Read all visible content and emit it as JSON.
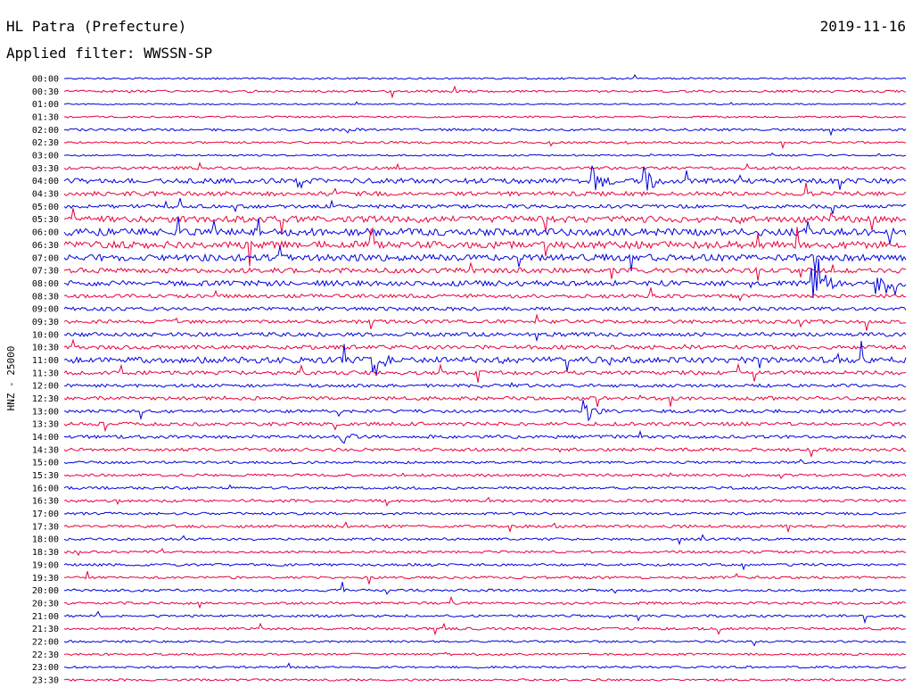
{
  "header": {
    "station": "HL Patra (Prefecture)",
    "date": "2019-11-16",
    "filter": "Applied filter: WWSSN-SP"
  },
  "chart_data": {
    "type": "line",
    "title": "HL Patra (Prefecture)",
    "subtitle": "Applied filter: WWSSN-SP",
    "date": "2019-11-16",
    "ylabel": "HNZ - 25000",
    "xlabel": "",
    "grid": false,
    "legend": "none",
    "series_colors": [
      "#0000e0",
      "#e8003c"
    ],
    "row_labels": [
      "00:00",
      "00:30",
      "01:00",
      "01:30",
      "02:00",
      "02:30",
      "03:00",
      "03:30",
      "04:00",
      "04:30",
      "05:00",
      "05:30",
      "06:00",
      "06:30",
      "07:00",
      "07:30",
      "08:00",
      "08:30",
      "09:00",
      "09:30",
      "10:00",
      "10:30",
      "11:00",
      "11:30",
      "12:00",
      "12:30",
      "13:00",
      "13:30",
      "14:00",
      "14:30",
      "15:00",
      "15:30",
      "16:00",
      "16:30",
      "17:00",
      "17:30",
      "18:00",
      "18:30",
      "19:00",
      "19:30",
      "20:00",
      "20:30",
      "21:00",
      "21:30",
      "22:00",
      "22:30",
      "23:00",
      "23:30"
    ],
    "row_activity": [
      0.25,
      0.3,
      0.2,
      0.25,
      0.35,
      0.3,
      0.25,
      0.4,
      0.7,
      0.6,
      0.5,
      0.9,
      1.0,
      1.0,
      0.9,
      0.7,
      0.75,
      0.5,
      0.5,
      0.5,
      0.55,
      0.55,
      0.85,
      0.55,
      0.45,
      0.5,
      0.45,
      0.5,
      0.45,
      0.45,
      0.35,
      0.35,
      0.35,
      0.4,
      0.35,
      0.4,
      0.35,
      0.35,
      0.35,
      0.35,
      0.35,
      0.35,
      0.35,
      0.35,
      0.3,
      0.3,
      0.3,
      0.3
    ],
    "events": [
      {
        "row": 8,
        "time": 0.63,
        "amp": 0.6
      },
      {
        "row": 8,
        "time": 0.69,
        "amp": 0.6
      },
      {
        "row": 16,
        "time": 0.89,
        "amp": 2.2
      },
      {
        "row": 16,
        "time": 0.97,
        "amp": 0.8
      },
      {
        "row": 22,
        "time": 0.37,
        "amp": 0.7
      },
      {
        "row": 26,
        "time": 0.62,
        "amp": 0.5
      },
      {
        "row": 28,
        "time": 0.33,
        "amp": 0.4
      }
    ]
  }
}
